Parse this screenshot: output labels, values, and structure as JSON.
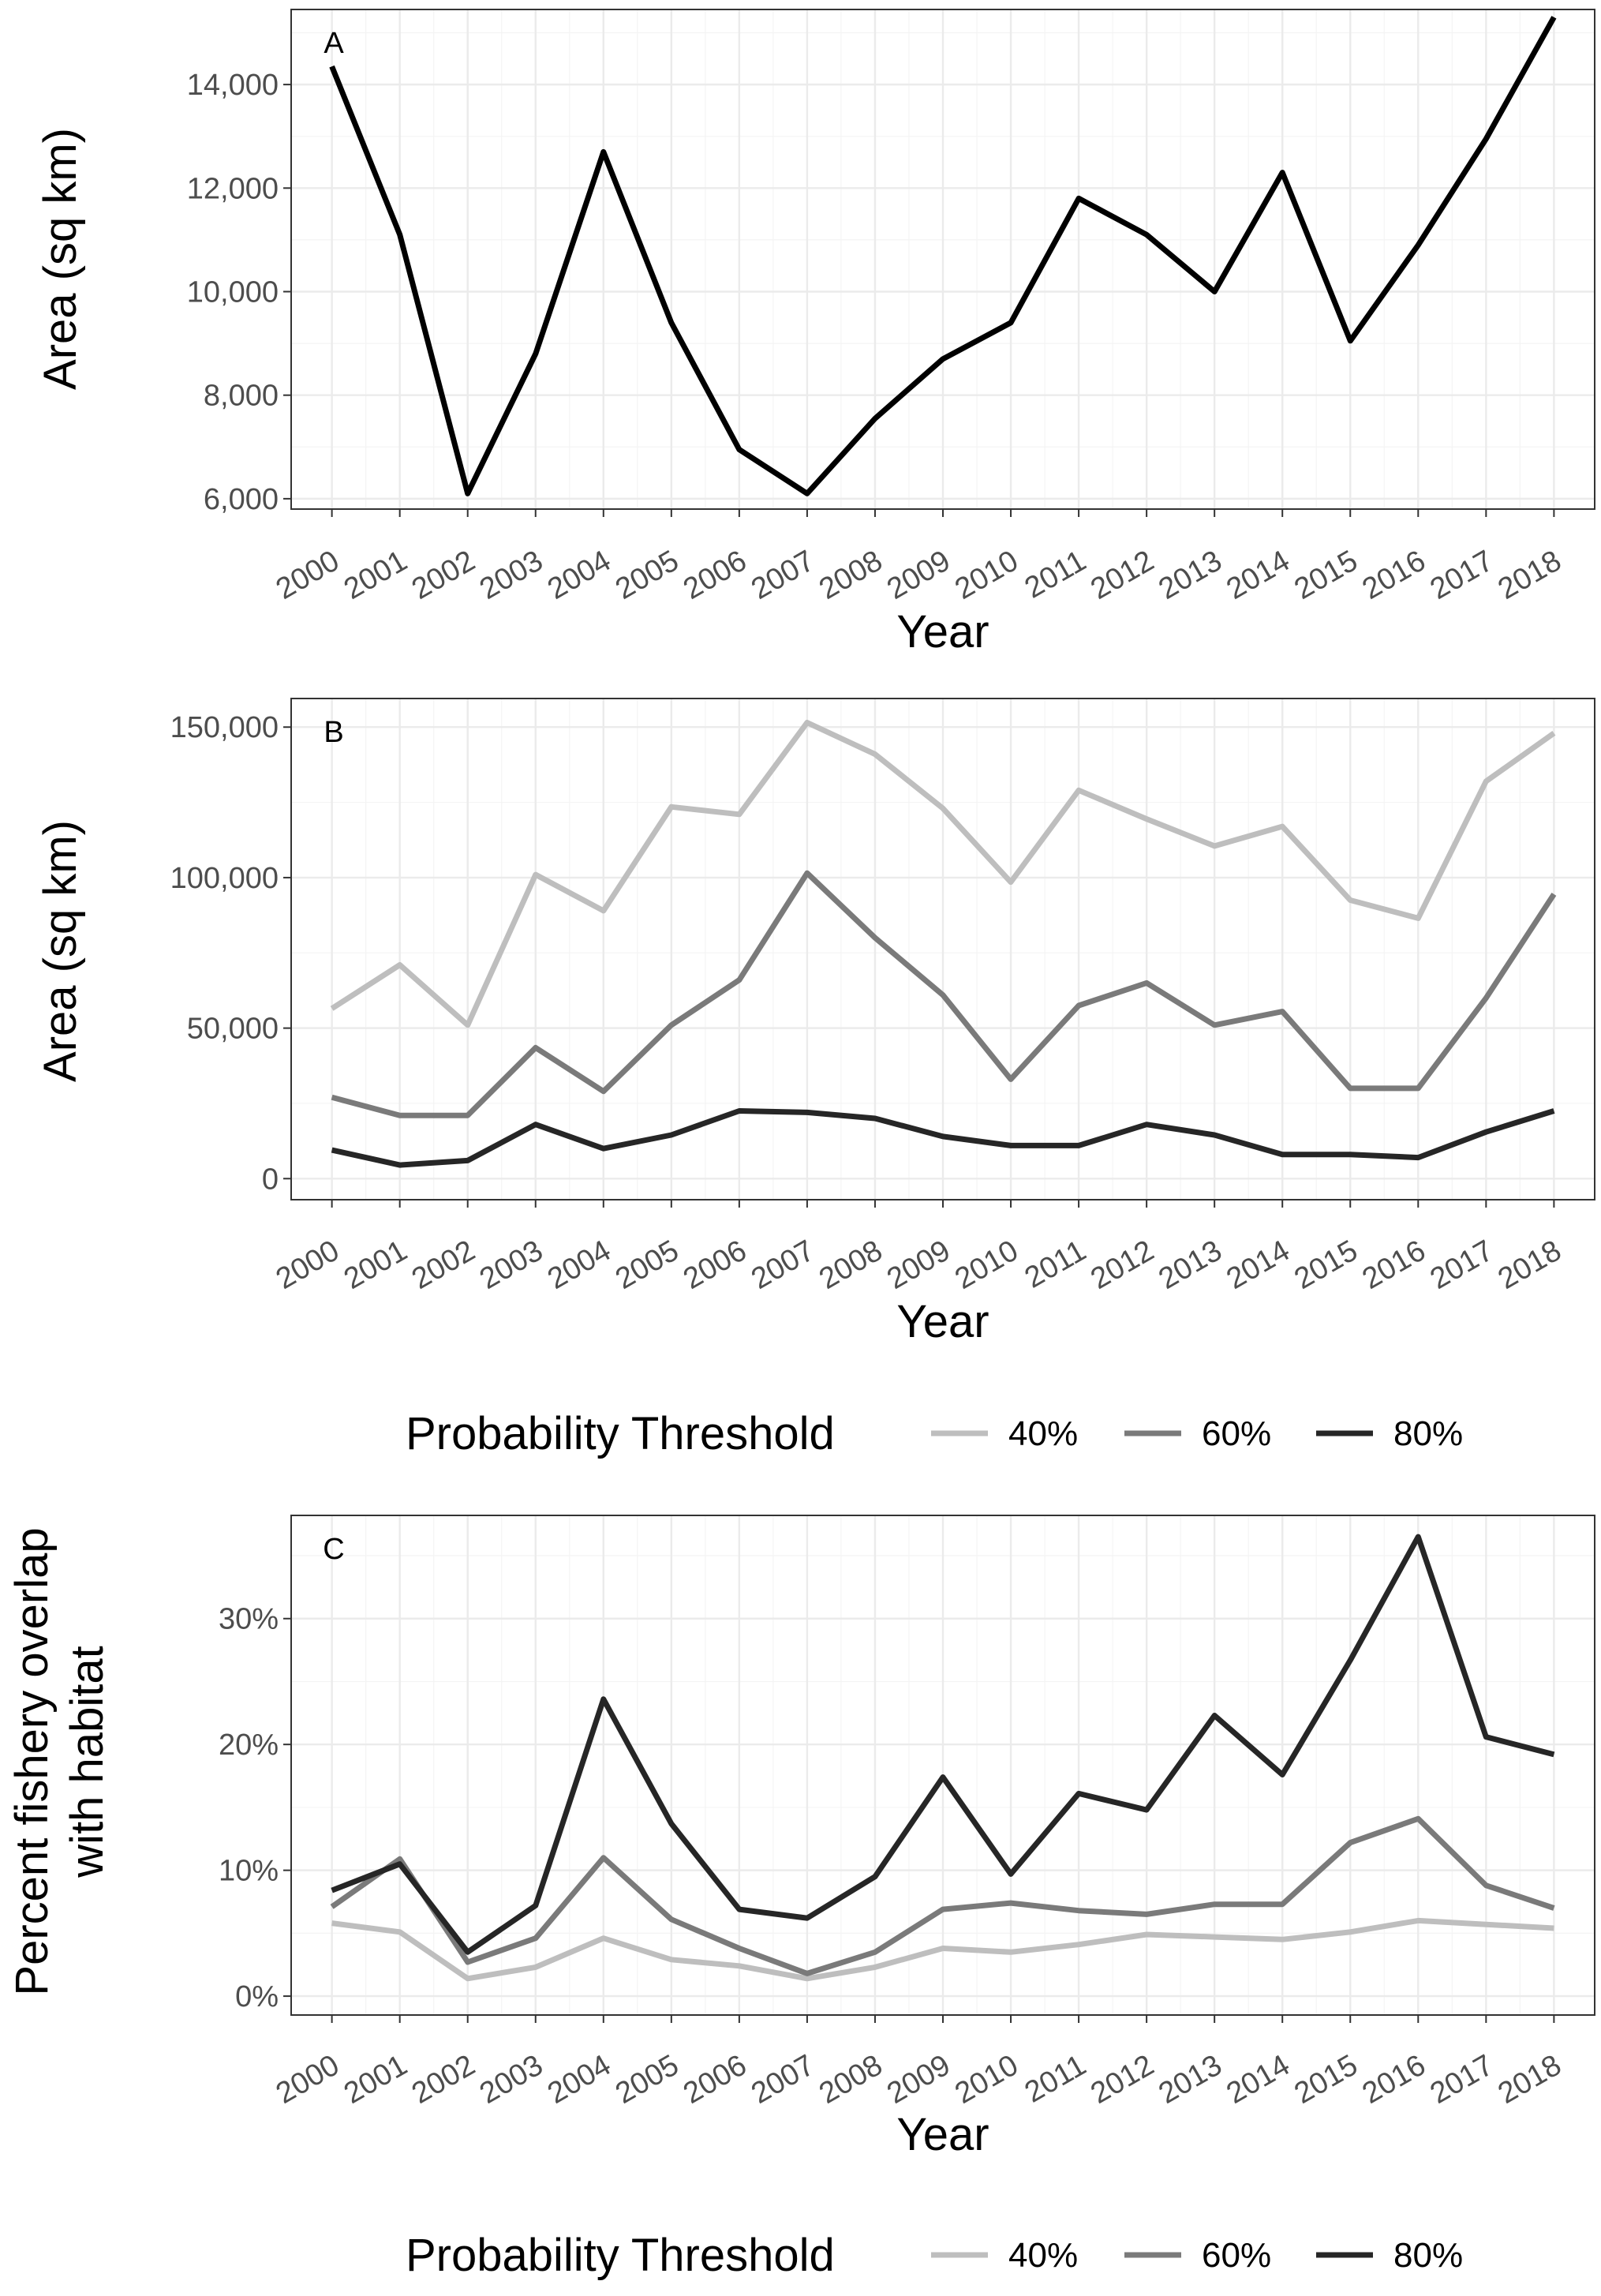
{
  "colors": {
    "40%": "#bebebe",
    "60%": "#7a7a7a",
    "80%": "#262626",
    "single": "#000000"
  },
  "legend": {
    "title": "Probability Threshold",
    "labels": [
      "40%",
      "60%",
      "80%"
    ]
  },
  "chart_data": [
    {
      "type": "line",
      "panel_label": "A",
      "xlabel": "Year",
      "ylabel": "Area (sq km)",
      "x": [
        "2000",
        "2001",
        "2002",
        "2003",
        "2004",
        "2005",
        "2006",
        "2007",
        "2008",
        "2009",
        "2010",
        "2011",
        "2012",
        "2013",
        "2014",
        "2015",
        "2016",
        "2017",
        "2018"
      ],
      "ylim": [
        5800,
        15450
      ],
      "yticks": [
        6000,
        8000,
        10000,
        12000,
        14000
      ],
      "ytick_labels": [
        "6,000",
        "8,000",
        "10,000",
        "12,000",
        "14,000"
      ],
      "grid": true,
      "series": [
        {
          "name": "Area",
          "color_key": "single",
          "values": [
            14350,
            11100,
            6100,
            8800,
            12700,
            9400,
            6950,
            6100,
            7550,
            8700,
            9400,
            11800,
            11100,
            10000,
            12300,
            9050,
            10900,
            12950,
            15300
          ]
        }
      ]
    },
    {
      "type": "line",
      "panel_label": "B",
      "xlabel": "Year",
      "ylabel": "Area (sq km)",
      "x": [
        "2000",
        "2001",
        "2002",
        "2003",
        "2004",
        "2005",
        "2006",
        "2007",
        "2008",
        "2009",
        "2010",
        "2011",
        "2012",
        "2013",
        "2014",
        "2015",
        "2016",
        "2017",
        "2018"
      ],
      "ylim": [
        -7000,
        159500
      ],
      "yticks": [
        0,
        50000,
        100000,
        150000
      ],
      "ytick_labels": [
        "0",
        "50,000",
        "100,000",
        "150,000"
      ],
      "grid": true,
      "legend_position": "bottom",
      "series": [
        {
          "name": "40%",
          "values": [
            56500,
            71000,
            51000,
            101000,
            89000,
            123500,
            121000,
            151500,
            141000,
            123000,
            98500,
            129000,
            119500,
            110500,
            117000,
            92500,
            86500,
            132000,
            148000
          ]
        },
        {
          "name": "60%",
          "values": [
            27000,
            21000,
            21000,
            43500,
            29000,
            51000,
            66000,
            101500,
            80000,
            61000,
            33000,
            57500,
            65000,
            51000,
            55500,
            30000,
            30000,
            60000,
            94500
          ]
        },
        {
          "name": "80%",
          "values": [
            9500,
            4500,
            6000,
            18000,
            10000,
            14500,
            22500,
            22000,
            20000,
            14000,
            11000,
            11000,
            18000,
            14500,
            8000,
            8000,
            7000,
            15500,
            22500
          ]
        }
      ]
    },
    {
      "type": "line",
      "panel_label": "C",
      "xlabel": "Year",
      "ylabel_lines": [
        "Percent fishery overlap",
        "with habitat"
      ],
      "x": [
        "2000",
        "2001",
        "2002",
        "2003",
        "2004",
        "2005",
        "2006",
        "2007",
        "2008",
        "2009",
        "2010",
        "2011",
        "2012",
        "2013",
        "2014",
        "2015",
        "2016",
        "2017",
        "2018"
      ],
      "ylim": [
        -0.015,
        0.382
      ],
      "yticks": [
        0,
        0.1,
        0.2,
        0.3
      ],
      "ytick_labels": [
        "0%",
        "10%",
        "20%",
        "30%"
      ],
      "grid": true,
      "legend_position": "bottom",
      "series": [
        {
          "name": "40%",
          "values": [
            0.058,
            0.051,
            0.014,
            0.023,
            0.046,
            0.029,
            0.024,
            0.014,
            0.023,
            0.038,
            0.035,
            0.041,
            0.049,
            0.047,
            0.045,
            0.051,
            0.06,
            0.057,
            0.054
          ]
        },
        {
          "name": "60%",
          "values": [
            0.071,
            0.109,
            0.027,
            0.046,
            0.11,
            0.061,
            0.038,
            0.018,
            0.035,
            0.069,
            0.074,
            0.068,
            0.065,
            0.073,
            0.073,
            0.122,
            0.141,
            0.088,
            0.07
          ]
        },
        {
          "name": "80%",
          "values": [
            0.084,
            0.105,
            0.035,
            0.072,
            0.236,
            0.137,
            0.069,
            0.062,
            0.095,
            0.174,
            0.097,
            0.161,
            0.148,
            0.223,
            0.176,
            0.267,
            0.365,
            0.206,
            0.192
          ]
        }
      ]
    }
  ]
}
